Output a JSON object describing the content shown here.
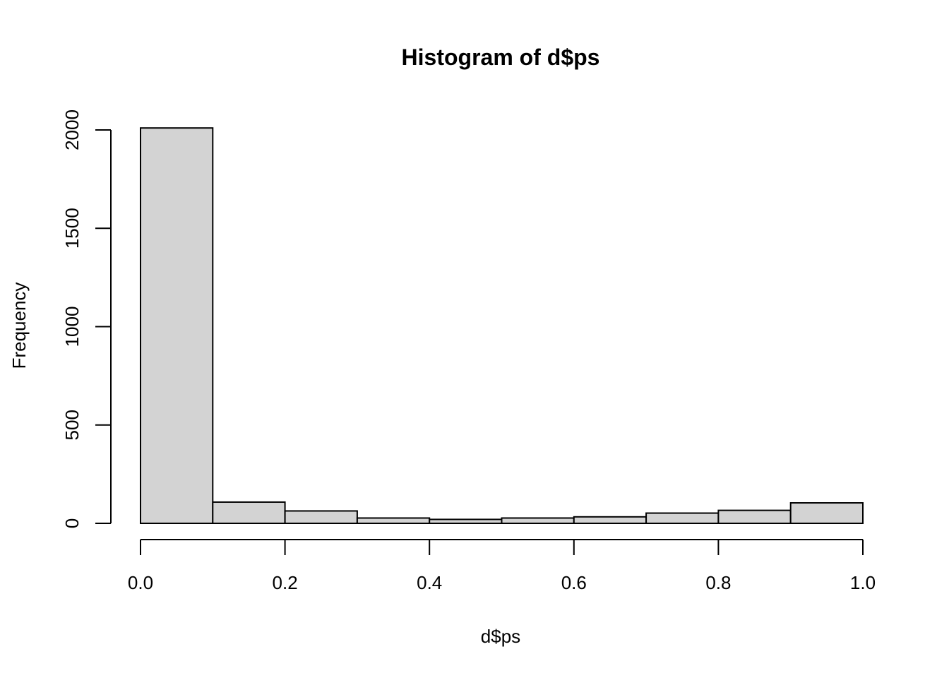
{
  "chart_data": {
    "type": "bar",
    "title": "Histogram of d$ps",
    "xlabel": "d$ps",
    "ylabel": "Frequency",
    "bins": [
      {
        "start": 0.0,
        "end": 0.1,
        "count": 2010
      },
      {
        "start": 0.1,
        "end": 0.2,
        "count": 108
      },
      {
        "start": 0.2,
        "end": 0.3,
        "count": 63
      },
      {
        "start": 0.3,
        "end": 0.4,
        "count": 27
      },
      {
        "start": 0.4,
        "end": 0.5,
        "count": 20
      },
      {
        "start": 0.5,
        "end": 0.6,
        "count": 27
      },
      {
        "start": 0.6,
        "end": 0.7,
        "count": 33
      },
      {
        "start": 0.7,
        "end": 0.8,
        "count": 52
      },
      {
        "start": 0.8,
        "end": 0.9,
        "count": 66
      },
      {
        "start": 0.9,
        "end": 1.0,
        "count": 104
      }
    ],
    "xlim": [
      0.0,
      1.0
    ],
    "ylim": [
      0,
      2000
    ],
    "x_ticks": [
      0.0,
      0.2,
      0.4,
      0.6,
      0.8,
      1.0
    ],
    "x_tick_labels": [
      "0.0",
      "0.2",
      "0.4",
      "0.6",
      "0.8",
      "1.0"
    ],
    "y_ticks": [
      0,
      500,
      1000,
      1500,
      2000
    ],
    "y_tick_labels": [
      "0",
      "500",
      "1000",
      "1500",
      "2000"
    ],
    "grid": false,
    "colors": {
      "bar_fill": "#d3d3d3",
      "bar_stroke": "#000000"
    }
  }
}
